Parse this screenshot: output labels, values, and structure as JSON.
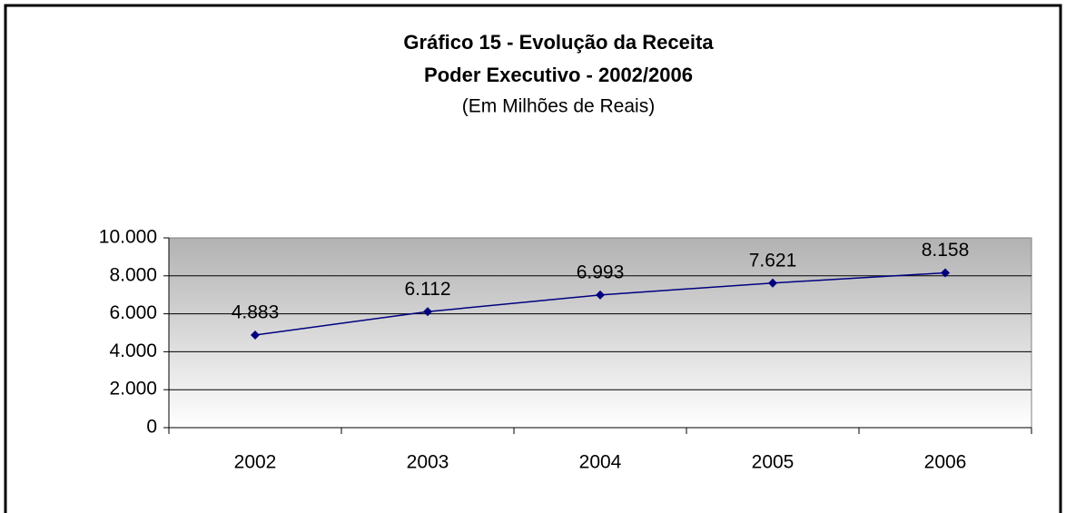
{
  "chart_data": {
    "type": "line",
    "title": [
      "Gráfico 15 - Evolução da Receita",
      "Poder Executivo - 2002/2006"
    ],
    "subtitle": "(Em Milhões de Reais)",
    "categories": [
      "2002",
      "2003",
      "2004",
      "2005",
      "2006"
    ],
    "values": [
      4883,
      6112,
      6993,
      7621,
      8158
    ],
    "value_labels": [
      "4.883",
      "6.112",
      "6.993",
      "7.621",
      "8.158"
    ],
    "color": "#000080",
    "ylim": [
      0,
      10000
    ],
    "yticks": [
      0,
      {
        "value": 2000,
        "label": "2.000"
      },
      {
        "value": 4000,
        "label": "4.000"
      },
      {
        "value": 6000,
        "label": "6.000"
      },
      {
        "value": 8000,
        "label": "8.000"
      },
      {
        "value": 10000,
        "label": "10.000"
      }
    ],
    "grid": true
  }
}
